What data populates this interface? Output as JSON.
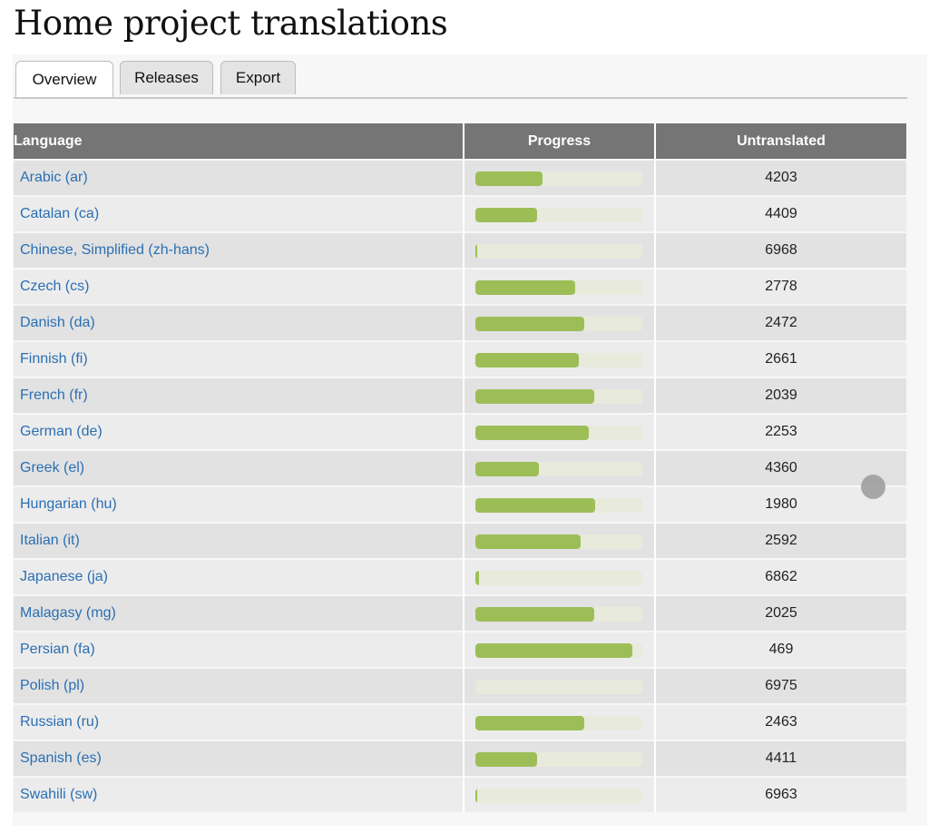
{
  "page": {
    "title": "Home project translations"
  },
  "tabs": [
    {
      "label": "Overview",
      "active": true
    },
    {
      "label": "Releases",
      "active": false
    },
    {
      "label": "Export",
      "active": false
    }
  ],
  "table": {
    "headers": {
      "language": "Language",
      "progress": "Progress",
      "untranslated": "Untranslated"
    },
    "rows": [
      {
        "language": "Arabic (ar)",
        "progress": 0.4,
        "untranslated": "4203"
      },
      {
        "language": "Catalan (ca)",
        "progress": 0.37,
        "untranslated": "4409"
      },
      {
        "language": "Chinese, Simplified (zh-hans)",
        "progress": 0.005,
        "untranslated": "6968"
      },
      {
        "language": "Czech (cs)",
        "progress": 0.6,
        "untranslated": "2778"
      },
      {
        "language": "Danish (da)",
        "progress": 0.65,
        "untranslated": "2472"
      },
      {
        "language": "Finnish (fi)",
        "progress": 0.62,
        "untranslated": "2661"
      },
      {
        "language": "French (fr)",
        "progress": 0.71,
        "untranslated": "2039"
      },
      {
        "language": "German (de)",
        "progress": 0.68,
        "untranslated": "2253"
      },
      {
        "language": "Greek (el)",
        "progress": 0.38,
        "untranslated": "4360"
      },
      {
        "language": "Hungarian (hu)",
        "progress": 0.72,
        "untranslated": "1980"
      },
      {
        "language": "Italian (it)",
        "progress": 0.63,
        "untranslated": "2592"
      },
      {
        "language": "Japanese (ja)",
        "progress": 0.02,
        "untranslated": "6862"
      },
      {
        "language": "Malagasy (mg)",
        "progress": 0.71,
        "untranslated": "2025"
      },
      {
        "language": "Persian (fa)",
        "progress": 0.94,
        "untranslated": "469"
      },
      {
        "language": "Polish (pl)",
        "progress": 0.0,
        "untranslated": "6975"
      },
      {
        "language": "Russian (ru)",
        "progress": 0.65,
        "untranslated": "2463"
      },
      {
        "language": "Spanish (es)",
        "progress": 0.37,
        "untranslated": "4411"
      },
      {
        "language": "Swahili (sw)",
        "progress": 0.005,
        "untranslated": "6963"
      }
    ]
  },
  "colors": {
    "link": "#2a6fb3",
    "header_bg": "#757575",
    "progress_fill": "#9dbe57",
    "progress_track": "#e8eadc"
  }
}
